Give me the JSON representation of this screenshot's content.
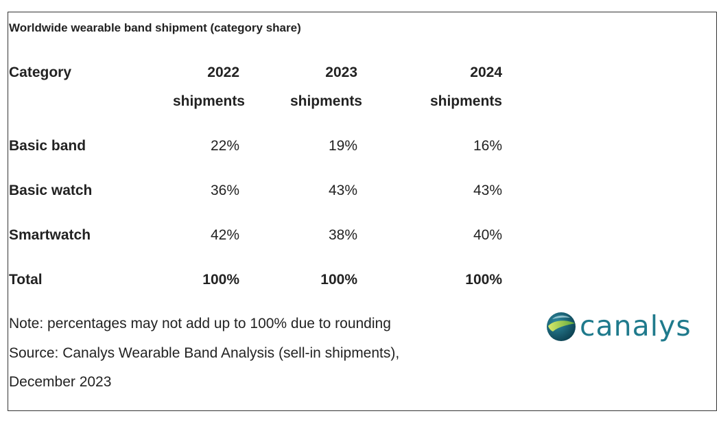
{
  "chart_data": {
    "type": "table",
    "title": "Worldwide wearable band shipment (category share)",
    "columns": [
      {
        "label": "Category",
        "sub": ""
      },
      {
        "label": "2022",
        "sub": "shipments"
      },
      {
        "label": "2023",
        "sub": "shipments"
      },
      {
        "label": "2024",
        "sub": "shipments"
      }
    ],
    "rows": [
      {
        "category": "Basic band",
        "values": [
          "22%",
          "19%",
          "16%"
        ]
      },
      {
        "category": "Basic watch",
        "values": [
          "36%",
          "43%",
          "43%"
        ]
      },
      {
        "category": "Smartwatch",
        "values": [
          "42%",
          "38%",
          "40%"
        ]
      },
      {
        "category": "Total",
        "values": [
          "100%",
          "100%",
          "100%"
        ]
      }
    ],
    "notes": [
      "Note: percentages may not add up to 100% due to rounding",
      "Source: Canalys Wearable Band Analysis (sell-in shipments),",
      "December 2023"
    ]
  },
  "branding": {
    "logo_text": "canalys",
    "logo_colors": {
      "text": "#1f7a8c",
      "globe_dark": "#0d5a6e",
      "globe_light": "#8cc63f"
    }
  }
}
